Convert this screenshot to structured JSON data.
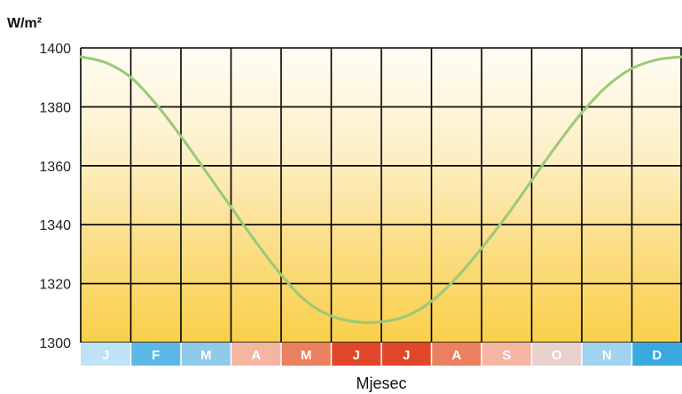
{
  "chart_data": {
    "type": "line",
    "title": "",
    "ylabel": "W/m²",
    "xlabel": "Mjesec",
    "ylim": [
      1300,
      1400
    ],
    "yticks": [
      1300,
      1320,
      1340,
      1360,
      1380,
      1400
    ],
    "ytick_labels": [
      "1300",
      "1320",
      "1340",
      "1360",
      "1380",
      "1400"
    ],
    "grid": true,
    "categories": [
      "J",
      "F",
      "M",
      "A",
      "M",
      "J",
      "J",
      "A",
      "S",
      "O",
      "N",
      "D"
    ],
    "month_colors": [
      "#bfe3f6",
      "#5cb8e6",
      "#8fcbe9",
      "#f4b6a2",
      "#ea8060",
      "#e1482b",
      "#e1482b",
      "#ea8060",
      "#f4b6a2",
      "#e8d0cc",
      "#9fd3ee",
      "#3aa9e0"
    ],
    "series": [
      {
        "name": "",
        "color": "#9bc87a",
        "x": [
          0,
          0.5,
          1,
          1.5,
          2,
          2.5,
          3,
          3.5,
          4,
          4.5,
          5,
          5.5,
          6,
          6.5,
          7,
          7.5,
          8,
          8.5,
          9,
          9.5,
          10,
          10.5,
          11,
          11.5,
          12
        ],
        "values": [
          1397,
          1395,
          1390,
          1381,
          1370,
          1358,
          1346,
          1334,
          1323,
          1314,
          1309,
          1307,
          1307,
          1309,
          1314,
          1322,
          1332,
          1343,
          1355,
          1367,
          1378,
          1387,
          1393,
          1396,
          1397
        ]
      }
    ]
  }
}
